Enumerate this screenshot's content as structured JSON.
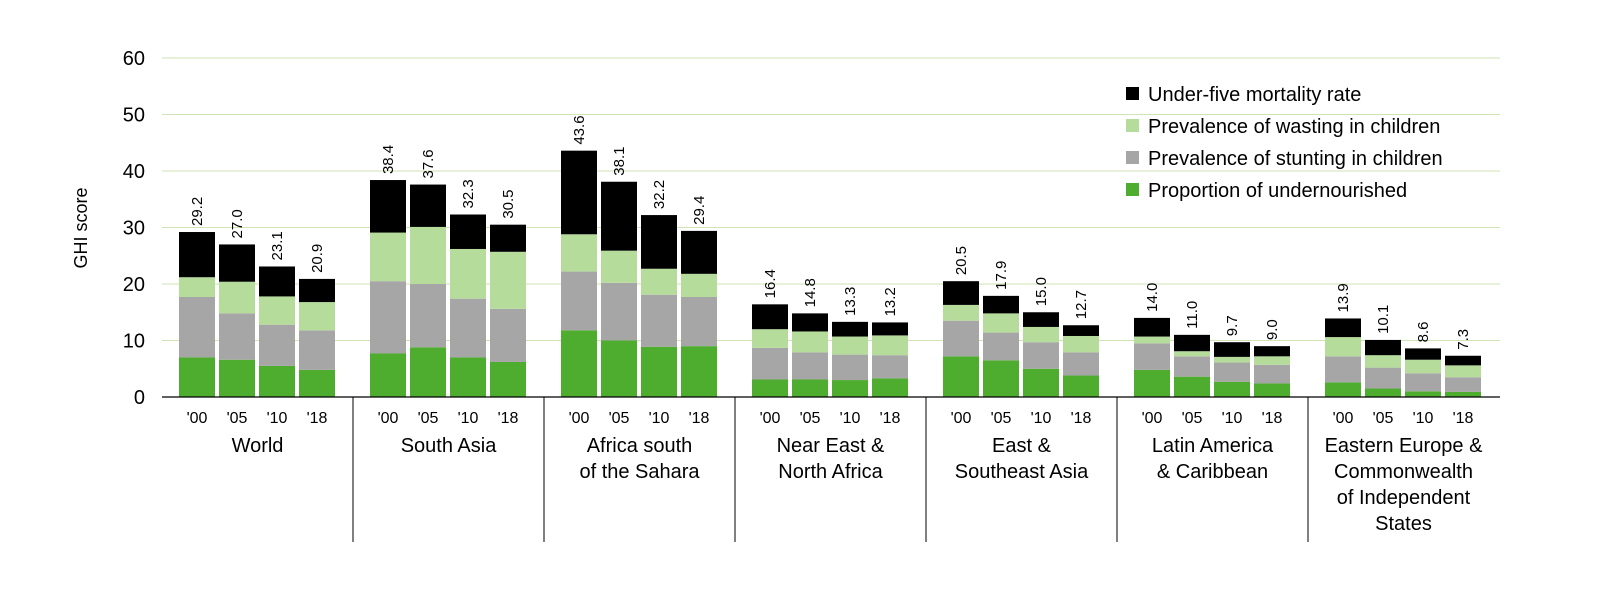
{
  "chart_data": {
    "type": "bar",
    "stacked": true,
    "title": "",
    "ylabel": "GHI score",
    "xlabel": "",
    "ylim": [
      0,
      60
    ],
    "yticks": [
      0,
      10,
      20,
      30,
      40,
      50,
      60
    ],
    "grid": true,
    "legend_position": "top-right",
    "components": [
      {
        "name": "Proportion of undernourished",
        "color": "#4ead2f"
      },
      {
        "name": "Prevalence of stunting in children",
        "color": "#a6a6a6"
      },
      {
        "name": "Prevalence of wasting in children",
        "color": "#b5dc9a"
      },
      {
        "name": "Under-five mortality rate",
        "color": "#000000"
      }
    ],
    "legend_order": [
      "Under-five mortality rate",
      "Prevalence of wasting in children",
      "Prevalence of stunting in children",
      "Proportion of undernourished"
    ],
    "groups": [
      {
        "region": [
          "World"
        ],
        "bars": [
          {
            "label": "'00",
            "total": "29.2",
            "values": [
              7.0,
              10.7,
              3.5,
              8.0
            ]
          },
          {
            "label": "'05",
            "total": "27.0",
            "values": [
              6.6,
              8.2,
              5.6,
              6.6
            ]
          },
          {
            "label": "'10",
            "total": "23.1",
            "values": [
              5.5,
              7.3,
              5.0,
              5.3
            ]
          },
          {
            "label": "'18",
            "total": "20.9",
            "values": [
              4.8,
              7.0,
              5.0,
              4.1
            ]
          }
        ]
      },
      {
        "region": [
          "South Asia"
        ],
        "bars": [
          {
            "label": "'00",
            "total": "38.4",
            "values": [
              7.7,
              12.8,
              8.6,
              9.3
            ]
          },
          {
            "label": "'05",
            "total": "37.6",
            "values": [
              8.8,
              11.2,
              10.1,
              7.5
            ]
          },
          {
            "label": "'10",
            "total": "32.3",
            "values": [
              7.0,
              10.4,
              8.8,
              6.1
            ]
          },
          {
            "label": "'18",
            "total": "30.5",
            "values": [
              6.2,
              9.4,
              10.1,
              4.8
            ]
          }
        ]
      },
      {
        "region": [
          "Africa south",
          "of the Sahara"
        ],
        "bars": [
          {
            "label": "'00",
            "total": "43.6",
            "values": [
              11.8,
              10.4,
              6.6,
              14.8
            ]
          },
          {
            "label": "'05",
            "total": "38.1",
            "values": [
              10.0,
              10.2,
              5.7,
              12.2
            ]
          },
          {
            "label": "'10",
            "total": "32.2",
            "values": [
              8.9,
              9.2,
              4.6,
              9.5
            ]
          },
          {
            "label": "'18",
            "total": "29.4",
            "values": [
              9.0,
              8.7,
              4.1,
              7.6
            ]
          }
        ]
      },
      {
        "region": [
          "Near East &",
          "North Africa"
        ],
        "bars": [
          {
            "label": "'00",
            "total": "16.4",
            "values": [
              3.1,
              5.6,
              3.3,
              4.4
            ]
          },
          {
            "label": "'05",
            "total": "14.8",
            "values": [
              3.1,
              4.8,
              3.7,
              3.2
            ]
          },
          {
            "label": "'10",
            "total": "13.3",
            "values": [
              3.0,
              4.5,
              3.2,
              2.6
            ]
          },
          {
            "label": "'18",
            "total": "13.2",
            "values": [
              3.3,
              4.1,
              3.5,
              2.3
            ]
          }
        ]
      },
      {
        "region": [
          "East &",
          "Southeast Asia"
        ],
        "bars": [
          {
            "label": "'00",
            "total": "20.5",
            "values": [
              7.2,
              6.3,
              2.8,
              4.2
            ]
          },
          {
            "label": "'05",
            "total": "17.9",
            "values": [
              6.5,
              4.9,
              3.4,
              3.1
            ]
          },
          {
            "label": "'10",
            "total": "15.0",
            "values": [
              5.0,
              4.7,
              2.7,
              2.6
            ]
          },
          {
            "label": "'18",
            "total": "12.7",
            "values": [
              3.8,
              4.1,
              2.9,
              1.9
            ]
          }
        ]
      },
      {
        "region": [
          "Latin America",
          "& Caribbean"
        ],
        "bars": [
          {
            "label": "'00",
            "total": "14.0",
            "values": [
              4.8,
              4.7,
              1.2,
              3.3
            ]
          },
          {
            "label": "'05",
            "total": "11.0",
            "values": [
              3.6,
              3.6,
              0.9,
              2.9
            ]
          },
          {
            "label": "'10",
            "total": "9.7",
            "values": [
              2.7,
              3.4,
              1.0,
              2.6
            ]
          },
          {
            "label": "'18",
            "total": "9.0",
            "values": [
              2.4,
              3.3,
              1.5,
              1.8
            ]
          }
        ]
      },
      {
        "region": [
          "Eastern Europe &",
          "Commonwealth",
          "of Independent",
          "States"
        ],
        "bars": [
          {
            "label": "'00",
            "total": "13.9",
            "values": [
              2.6,
              4.6,
              3.4,
              3.3
            ]
          },
          {
            "label": "'05",
            "total": "10.1",
            "values": [
              1.5,
              3.7,
              2.2,
              2.7
            ]
          },
          {
            "label": "'10",
            "total": "8.6",
            "values": [
              1.0,
              3.2,
              2.4,
              2.0
            ]
          },
          {
            "label": "'18",
            "total": "7.3",
            "values": [
              0.9,
              2.6,
              2.1,
              1.7
            ]
          }
        ]
      }
    ]
  }
}
